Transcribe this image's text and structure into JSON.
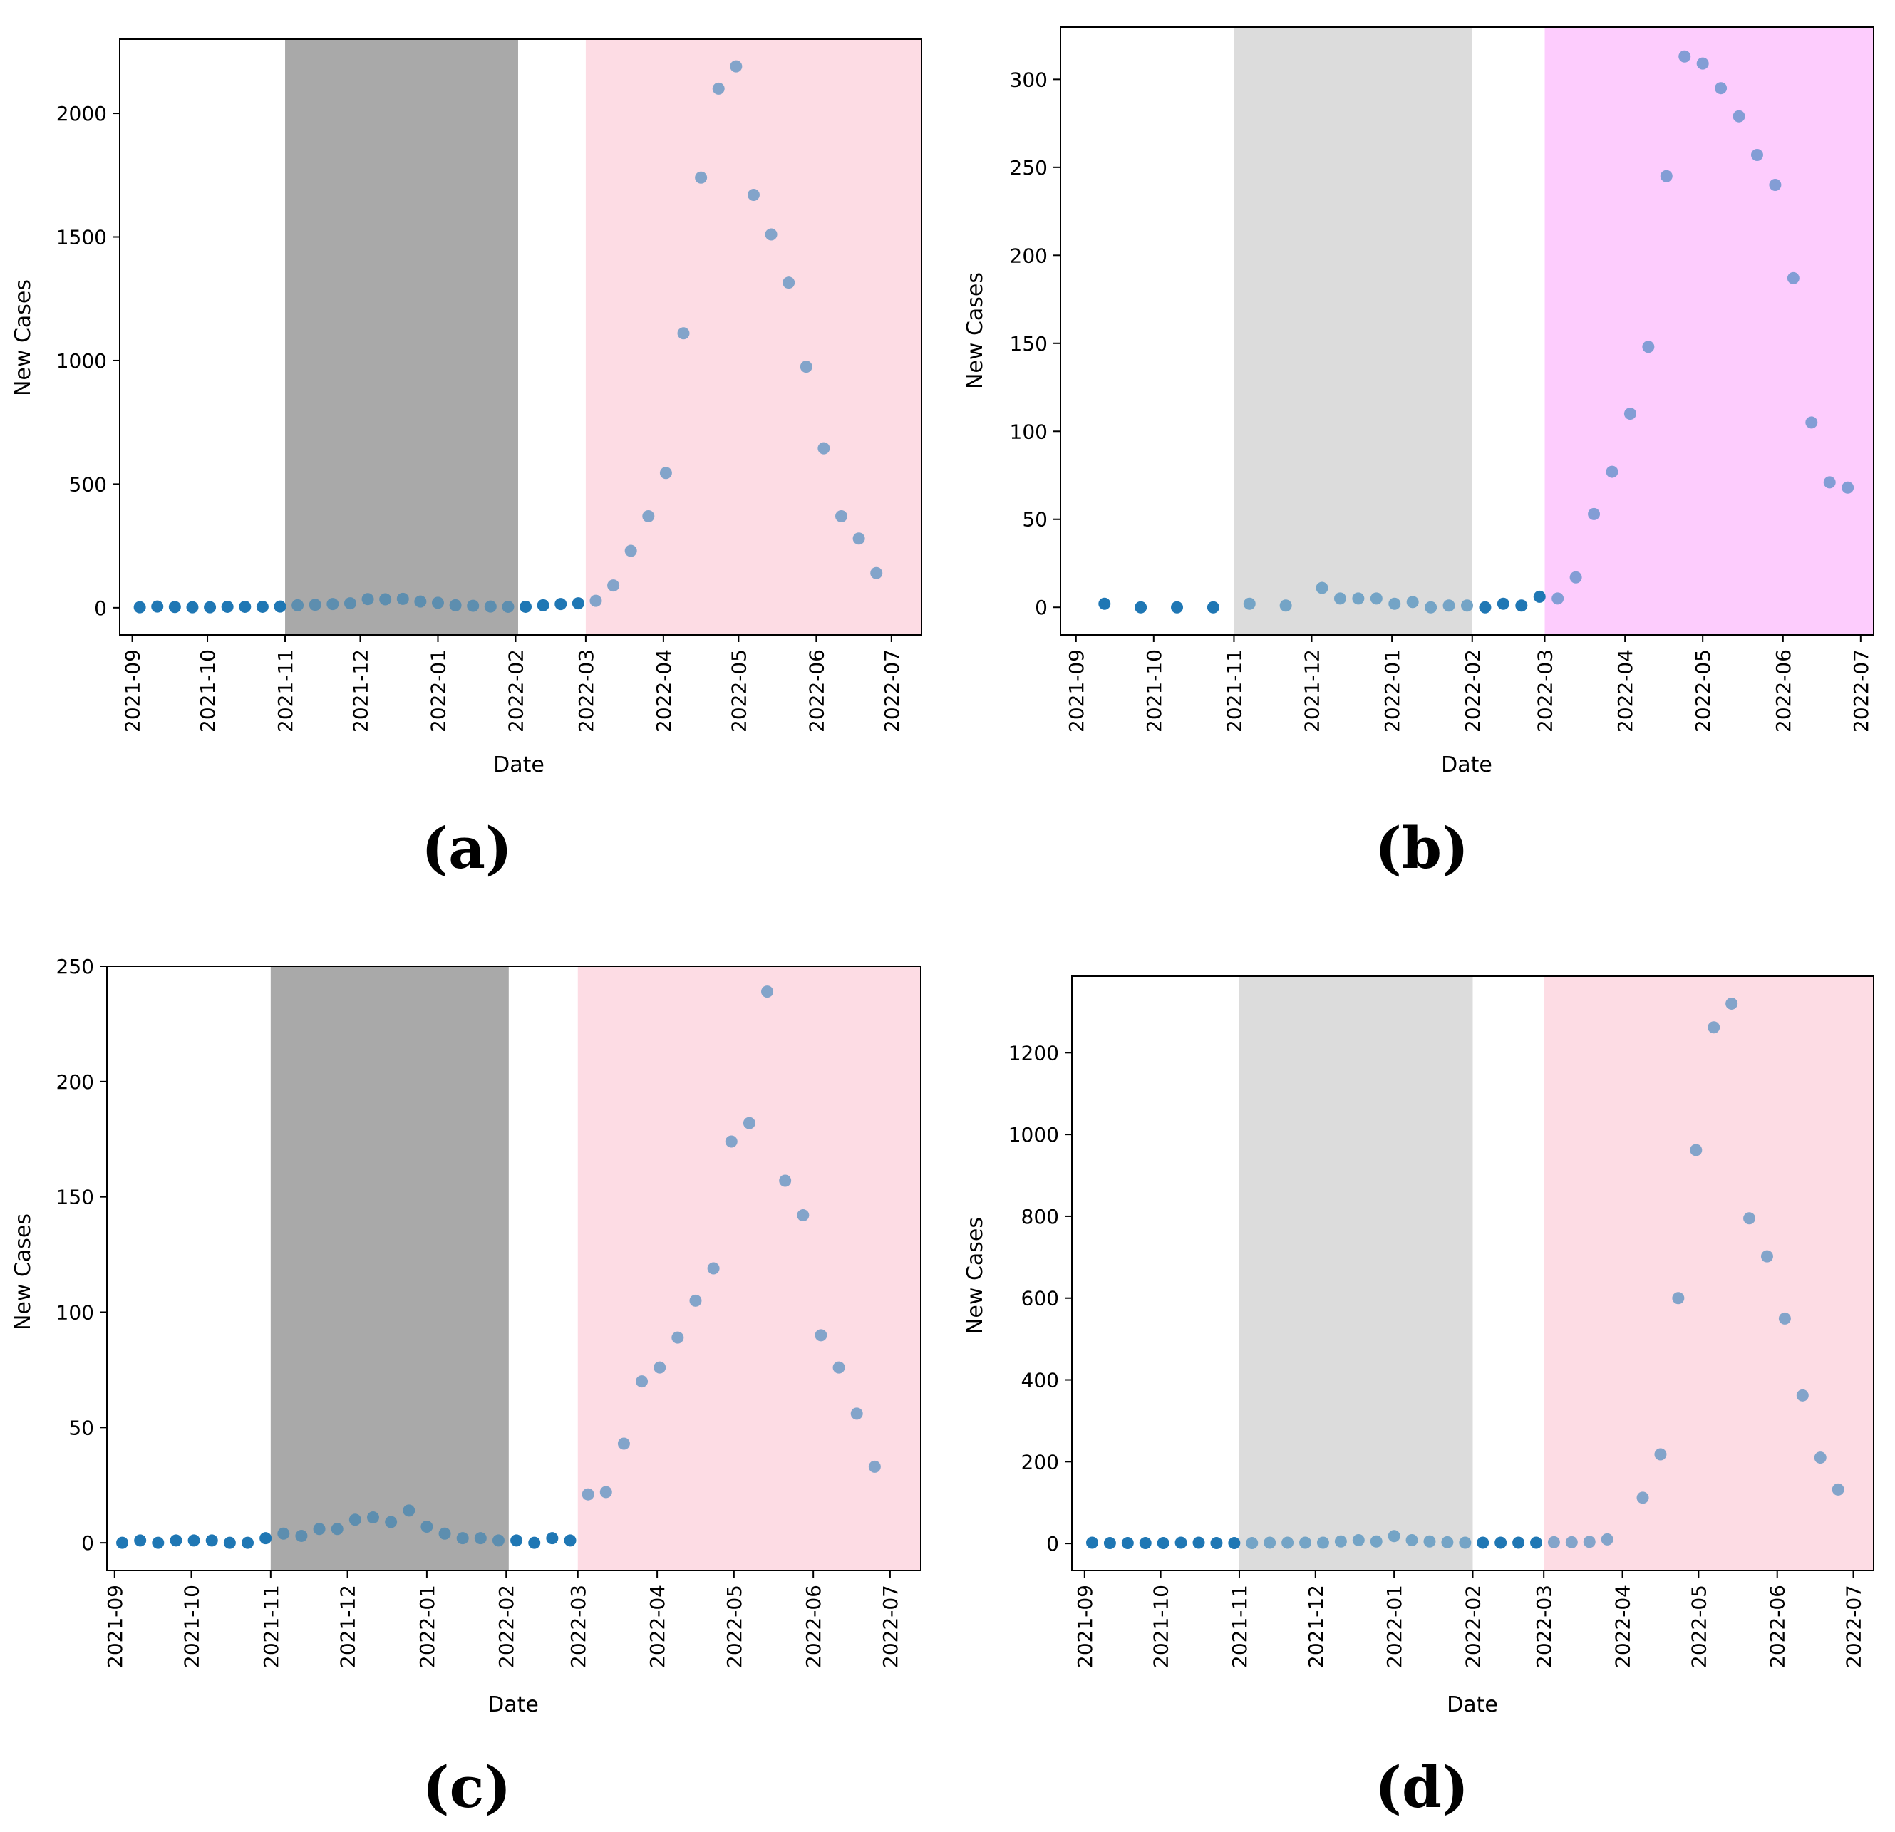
{
  "chart_data": [
    {
      "type": "scatter",
      "panel": "(a)",
      "xlabel": "Date",
      "ylabel": "New Cases",
      "x_ticks": [
        "2021-09",
        "2021-10",
        "2021-11",
        "2021-12",
        "2022-01",
        "2022-02",
        "2022-03",
        "2022-04",
        "2022-05",
        "2022-06",
        "2022-07"
      ],
      "xlim": [
        "2021-08-27",
        "2022-07-13"
      ],
      "ylim": [
        -110,
        2300
      ],
      "y_ticks": [
        0,
        500,
        1000,
        1500,
        2000
      ],
      "shaded_regions": [
        {
          "start": "2021-11-01",
          "end": "2022-02-02",
          "color": "#a9a9a9"
        },
        {
          "start": "2022-03-01",
          "end": "2022-07-13",
          "color": "#fddce4"
        }
      ],
      "point_color": "#1f77b4",
      "series": [
        {
          "name": "New Cases",
          "x": [
            "2021-09-04",
            "2021-09-11",
            "2021-09-18",
            "2021-09-25",
            "2021-10-02",
            "2021-10-09",
            "2021-10-16",
            "2021-10-23",
            "2021-10-30",
            "2021-11-06",
            "2021-11-13",
            "2021-11-20",
            "2021-11-27",
            "2021-12-04",
            "2021-12-11",
            "2021-12-18",
            "2021-12-25",
            "2022-01-01",
            "2022-01-08",
            "2022-01-15",
            "2022-01-22",
            "2022-01-29",
            "2022-02-05",
            "2022-02-12",
            "2022-02-19",
            "2022-02-26",
            "2022-03-05",
            "2022-03-12",
            "2022-03-19",
            "2022-03-26",
            "2022-04-02",
            "2022-04-09",
            "2022-04-16",
            "2022-04-23",
            "2022-04-30",
            "2022-05-07",
            "2022-05-14",
            "2022-05-21",
            "2022-05-28",
            "2022-06-04",
            "2022-06-11",
            "2022-06-18",
            "2022-06-25"
          ],
          "values": [
            2,
            5,
            3,
            2,
            2,
            4,
            4,
            4,
            5,
            10,
            12,
            15,
            18,
            35,
            34,
            36,
            25,
            20,
            10,
            8,
            5,
            4,
            4,
            10,
            15,
            18,
            28,
            90,
            230,
            370,
            545,
            1110,
            1740,
            2100,
            2190,
            1670,
            1510,
            1315,
            975,
            645,
            370,
            280,
            140
          ]
        }
      ]
    },
    {
      "type": "scatter",
      "panel": "(b)",
      "xlabel": "Date",
      "ylabel": "New Cases",
      "x_ticks": [
        "2021-09",
        "2021-10",
        "2021-11",
        "2021-12",
        "2022-01",
        "2022-02",
        "2022-03",
        "2022-04",
        "2022-05",
        "2022-06",
        "2022-07"
      ],
      "xlim": [
        "2021-08-26",
        "2022-07-06"
      ],
      "ylim": [
        -15.7,
        329.7
      ],
      "y_ticks": [
        0,
        50,
        100,
        150,
        200,
        250,
        300
      ],
      "shaded_regions": [
        {
          "start": "2021-11-01",
          "end": "2022-02-01",
          "color": "#dcdcdc"
        },
        {
          "start": "2022-03-01",
          "end": "2022-07-06",
          "color": "#fdccfd"
        }
      ],
      "point_color": "#1f77b4",
      "series": [
        {
          "name": "New Cases",
          "x": [
            "2021-09-12",
            "2021-09-26",
            "2021-10-10",
            "2021-10-24",
            "2021-11-07",
            "2021-11-21",
            "2021-12-05",
            "2021-12-12",
            "2021-12-19",
            "2021-12-26",
            "2022-01-02",
            "2022-01-09",
            "2022-01-16",
            "2022-01-23",
            "2022-01-30",
            "2022-02-06",
            "2022-02-13",
            "2022-02-20",
            "2022-02-27",
            "2022-03-06",
            "2022-03-13",
            "2022-03-20",
            "2022-03-27",
            "2022-04-03",
            "2022-04-10",
            "2022-04-17",
            "2022-04-24",
            "2022-05-01",
            "2022-05-08",
            "2022-05-15",
            "2022-05-22",
            "2022-05-29",
            "2022-06-05",
            "2022-06-12",
            "2022-06-19",
            "2022-06-26"
          ],
          "values": [
            2,
            0,
            0,
            0,
            2,
            1,
            11,
            5,
            5,
            5,
            2,
            3,
            0,
            1,
            1,
            0,
            2,
            1,
            6,
            5,
            17,
            53,
            77,
            110,
            148,
            245,
            313,
            309,
            295,
            279,
            257,
            240,
            187,
            105,
            71,
            68
          ]
        }
      ]
    },
    {
      "type": "scatter",
      "panel": "(c)",
      "xlabel": "Date",
      "ylabel": "New Cases",
      "x_ticks": [
        "2021-09",
        "2021-10",
        "2021-11",
        "2021-12",
        "2022-01",
        "2022-02",
        "2022-03",
        "2022-04",
        "2022-05",
        "2022-06",
        "2022-07"
      ],
      "xlim": [
        "2021-08-29",
        "2022-07-13"
      ],
      "ylim": [
        -12,
        250
      ],
      "y_ticks": [
        0,
        50,
        100,
        150,
        200,
        250
      ],
      "shaded_regions": [
        {
          "start": "2021-11-01",
          "end": "2022-02-02",
          "color": "#a9a9a9"
        },
        {
          "start": "2022-03-01",
          "end": "2022-07-13",
          "color": "#fddce4"
        }
      ],
      "point_color": "#1f77b4",
      "series": [
        {
          "name": "New Cases",
          "x": [
            "2021-09-04",
            "2021-09-11",
            "2021-09-18",
            "2021-09-25",
            "2021-10-02",
            "2021-10-09",
            "2021-10-16",
            "2021-10-23",
            "2021-10-30",
            "2021-11-06",
            "2021-11-13",
            "2021-11-20",
            "2021-11-27",
            "2021-12-04",
            "2021-12-11",
            "2021-12-18",
            "2021-12-25",
            "2022-01-01",
            "2022-01-08",
            "2022-01-15",
            "2022-01-22",
            "2022-01-29",
            "2022-02-05",
            "2022-02-12",
            "2022-02-19",
            "2022-02-26",
            "2022-03-05",
            "2022-03-12",
            "2022-03-19",
            "2022-03-26",
            "2022-04-02",
            "2022-04-09",
            "2022-04-16",
            "2022-04-23",
            "2022-04-30",
            "2022-05-07",
            "2022-05-14",
            "2022-05-21",
            "2022-05-28",
            "2022-06-04",
            "2022-06-11",
            "2022-06-18",
            "2022-06-25"
          ],
          "values": [
            0,
            1,
            0,
            1,
            1,
            1,
            0,
            0,
            2,
            4,
            3,
            6,
            6,
            10,
            11,
            9,
            14,
            7,
            4,
            2,
            2,
            1,
            1,
            0,
            2,
            1,
            21,
            22,
            43,
            70,
            76,
            89,
            105,
            119,
            174,
            182,
            239,
            157,
            142,
            90,
            76,
            56,
            33
          ]
        }
      ]
    },
    {
      "type": "scatter",
      "panel": "(d)",
      "xlabel": "Date",
      "ylabel": "New Cases",
      "x_ticks": [
        "2021-09",
        "2021-10",
        "2021-11",
        "2021-12",
        "2022-01",
        "2022-02",
        "2022-03",
        "2022-04",
        "2022-05",
        "2022-06",
        "2022-07"
      ],
      "xlim": [
        "2021-08-27",
        "2022-07-09"
      ],
      "ylim": [
        -66,
        1387
      ],
      "y_ticks": [
        0,
        200,
        400,
        600,
        800,
        1000,
        1200
      ],
      "shaded_regions": [
        {
          "start": "2021-11-01",
          "end": "2022-02-01",
          "color": "#dcdcdc"
        },
        {
          "start": "2022-03-01",
          "end": "2022-07-09",
          "color": "#fddce4"
        }
      ],
      "point_color": "#1f77b4",
      "series": [
        {
          "name": "New Cases",
          "x": [
            "2021-09-04",
            "2021-09-11",
            "2021-09-18",
            "2021-09-25",
            "2021-10-02",
            "2021-10-09",
            "2021-10-16",
            "2021-10-23",
            "2021-10-30",
            "2021-11-06",
            "2021-11-13",
            "2021-11-20",
            "2021-11-27",
            "2021-12-04",
            "2021-12-11",
            "2021-12-18",
            "2021-12-25",
            "2022-01-01",
            "2022-01-08",
            "2022-01-15",
            "2022-01-22",
            "2022-01-29",
            "2022-02-05",
            "2022-02-12",
            "2022-02-19",
            "2022-02-26",
            "2022-03-05",
            "2022-03-12",
            "2022-03-19",
            "2022-03-26",
            "2022-04-09",
            "2022-04-16",
            "2022-04-23",
            "2022-04-30",
            "2022-05-07",
            "2022-05-14",
            "2022-05-21",
            "2022-05-28",
            "2022-06-04",
            "2022-06-11",
            "2022-06-18",
            "2022-06-25"
          ],
          "values": [
            2,
            1,
            1,
            1,
            1,
            2,
            2,
            1,
            1,
            1,
            2,
            2,
            2,
            2,
            5,
            8,
            5,
            18,
            8,
            5,
            3,
            2,
            2,
            2,
            2,
            2,
            3,
            3,
            4,
            10,
            112,
            218,
            600,
            962,
            1262,
            1320,
            795,
            702,
            550,
            362,
            210,
            132
          ]
        }
      ]
    }
  ]
}
